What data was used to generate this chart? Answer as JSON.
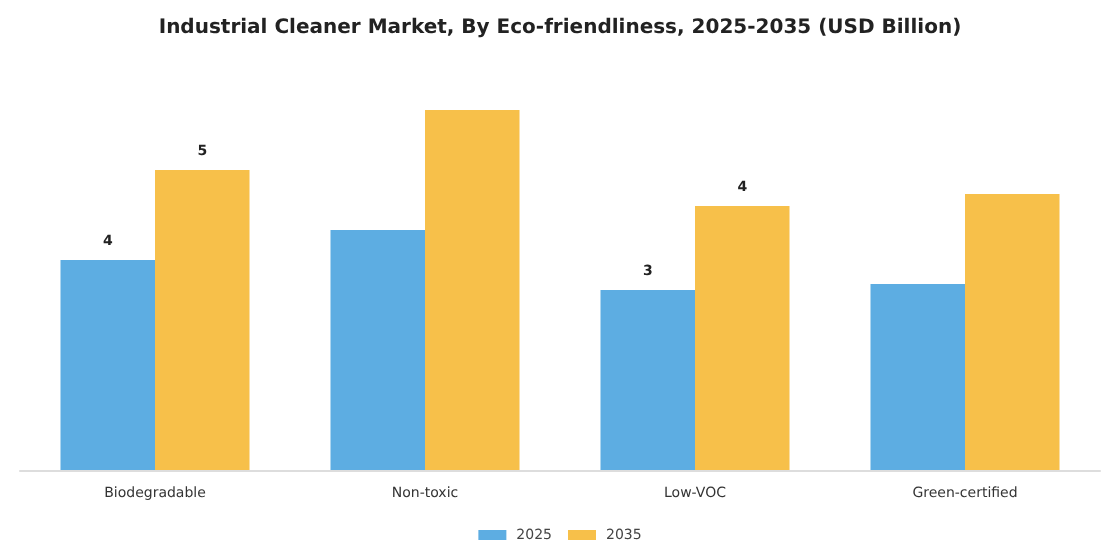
{
  "chart_data": {
    "type": "bar",
    "title": "Industrial Cleaner Market, By Eco-friendliness, 2025-2035 (USD Billion)",
    "categories": [
      "Biodegradable",
      "Non-toxic",
      "Low-VOC",
      "Green-certified"
    ],
    "tick_labels": "x",
    "legend": "bottom",
    "series": [
      {
        "name": "2025",
        "color": "#5dade2",
        "values": [
          3.5,
          4.0,
          3.0,
          3.1
        ],
        "value_labels": [
          "4",
          null,
          "3",
          null
        ]
      },
      {
        "name": "2035",
        "color": "#f7c04a",
        "values": [
          5.0,
          6.0,
          4.4,
          4.6
        ],
        "value_labels": [
          "5",
          null,
          "4",
          null
        ]
      }
    ]
  }
}
